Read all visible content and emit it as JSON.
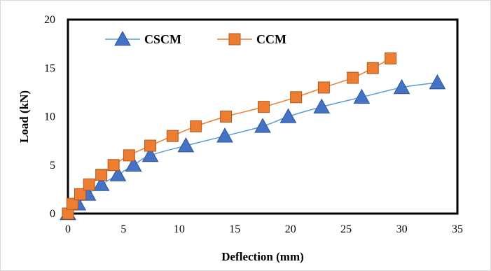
{
  "chart_data": {
    "type": "line",
    "title": "",
    "xlabel": "Deflection (mm)",
    "ylabel": "Load (kN)",
    "xlim": [
      0,
      35
    ],
    "ylim": [
      0,
      20
    ],
    "xticks": [
      "0",
      "5",
      "10",
      "15",
      "20",
      "25",
      "30",
      "35"
    ],
    "yticks": [
      "0",
      "5",
      "10",
      "15",
      "20"
    ],
    "grid": false,
    "legend_position": "top-left",
    "series": [
      {
        "name": "CSCM",
        "marker": "triangle",
        "line_color": "#5b9bd5",
        "marker_color": "#4472c4",
        "x": [
          0,
          0.9,
          1.8,
          3.0,
          4.5,
          5.9,
          7.4,
          10.6,
          14.1,
          17.5,
          19.8,
          22.8,
          26.4,
          30.0,
          33.2
        ],
        "y": [
          0,
          1,
          2,
          3,
          4,
          5,
          6,
          7,
          8,
          9,
          10,
          11,
          12,
          13,
          13.5
        ]
      },
      {
        "name": "CCM",
        "marker": "square",
        "line_color": "#ed7d31",
        "marker_color": "#ed7d31",
        "x": [
          0,
          0.4,
          1.1,
          1.9,
          3.0,
          4.1,
          5.5,
          7.4,
          9.4,
          11.5,
          14.2,
          17.6,
          20.5,
          23.0,
          25.6,
          27.4,
          29.0
        ],
        "y": [
          0,
          1,
          2,
          3,
          4,
          5,
          6,
          7,
          8,
          9,
          10,
          11,
          12,
          13,
          14,
          15,
          16
        ]
      }
    ]
  }
}
